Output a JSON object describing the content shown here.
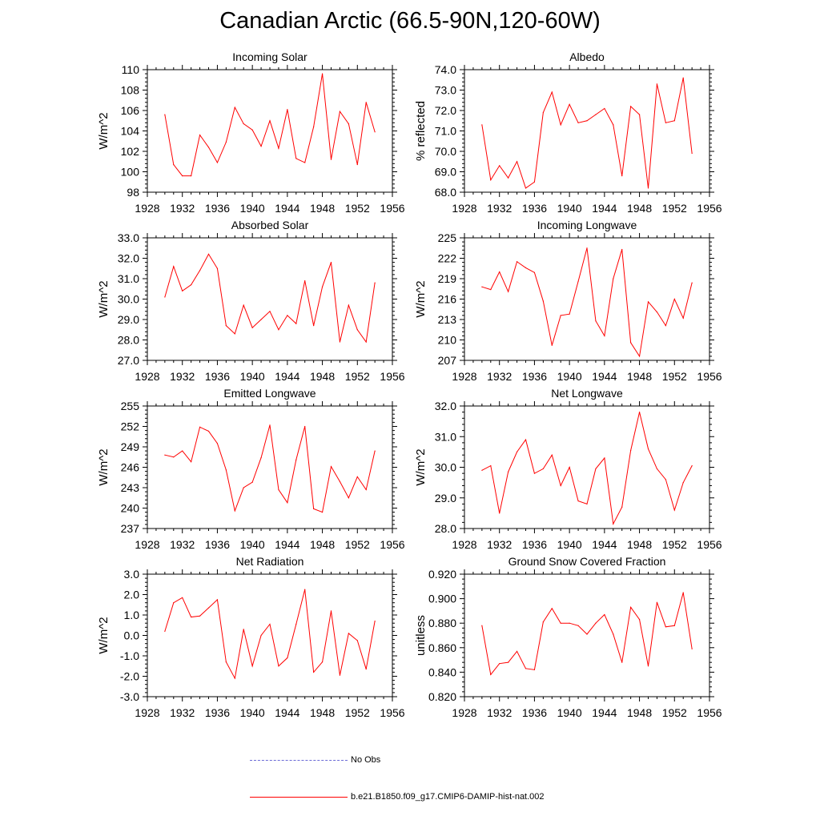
{
  "figure": {
    "title": "Canadian Arctic (66.5-90N,120-60W)"
  },
  "colors": {
    "model": "#ff0000",
    "obs": "#6b6bd6"
  },
  "legend": {
    "obs_label": "No Obs",
    "model_label": "b.e21.B1850.f09_g17.CMIP6-DAMIP-hist-nat.002"
  },
  "chart_data": [
    {
      "type": "line",
      "title": "Incoming Solar",
      "xlabel": "",
      "ylabel": "W/m^2",
      "xlim": [
        1928,
        1956
      ],
      "xticks": [
        1928,
        1932,
        1936,
        1940,
        1944,
        1948,
        1952,
        1956
      ],
      "ylim": [
        98,
        110
      ],
      "yticks": [
        "98",
        "100",
        "102",
        "104",
        "106",
        "108",
        "110"
      ],
      "grid": false,
      "series": [
        {
          "x": [
            1930,
            1931,
            1932,
            1933,
            1934,
            1935,
            1936,
            1937,
            1938,
            1939,
            1940,
            1941,
            1942,
            1943,
            1944,
            1945,
            1946,
            1947,
            1948,
            1949,
            1950,
            1951,
            1952,
            1953,
            1954
          ],
          "values": [
            105.6,
            100.7,
            99.6,
            99.6,
            103.6,
            102.4,
            100.9,
            102.9,
            106.3,
            104.7,
            104.1,
            102.5,
            105.0,
            102.3,
            106.1,
            101.3,
            100.9,
            104.4,
            109.6,
            101.2,
            105.9,
            104.7,
            100.7,
            106.8,
            103.9
          ]
        }
      ]
    },
    {
      "type": "line",
      "title": "Albedo",
      "xlabel": "",
      "ylabel": "% reflected",
      "xlim": [
        1928,
        1956
      ],
      "xticks": [
        1928,
        1932,
        1936,
        1940,
        1944,
        1948,
        1952,
        1956
      ],
      "ylim": [
        68,
        74
      ],
      "yticks": [
        "68.0",
        "69.0",
        "70.0",
        "71.0",
        "72.0",
        "73.0",
        "74.0"
      ],
      "grid": false,
      "series": [
        {
          "x": [
            1930,
            1931,
            1932,
            1933,
            1934,
            1935,
            1936,
            1937,
            1938,
            1939,
            1940,
            1941,
            1942,
            1943,
            1944,
            1945,
            1946,
            1947,
            1948,
            1949,
            1950,
            1951,
            1952,
            1953,
            1954
          ],
          "values": [
            71.3,
            68.6,
            69.3,
            68.7,
            69.5,
            68.2,
            68.5,
            71.9,
            72.9,
            71.3,
            72.3,
            71.4,
            71.5,
            71.8,
            72.1,
            71.3,
            68.8,
            72.2,
            71.8,
            68.2,
            73.3,
            71.4,
            71.5,
            73.6,
            69.9
          ]
        }
      ]
    },
    {
      "type": "line",
      "title": "Absorbed Solar",
      "xlabel": "",
      "ylabel": "W/m^2",
      "xlim": [
        1928,
        1956
      ],
      "xticks": [
        1928,
        1932,
        1936,
        1940,
        1944,
        1948,
        1952,
        1956
      ],
      "ylim": [
        27,
        33
      ],
      "yticks": [
        "27.0",
        "28.0",
        "29.0",
        "30.0",
        "31.0",
        "32.0",
        "33.0"
      ],
      "grid": false,
      "series": [
        {
          "x": [
            1930,
            1931,
            1932,
            1933,
            1934,
            1935,
            1936,
            1937,
            1938,
            1939,
            1940,
            1941,
            1942,
            1943,
            1944,
            1945,
            1946,
            1947,
            1948,
            1949,
            1950,
            1951,
            1952,
            1953,
            1954
          ],
          "values": [
            30.1,
            31.6,
            30.4,
            30.7,
            31.4,
            32.2,
            31.5,
            28.7,
            28.3,
            29.7,
            28.6,
            29.0,
            29.4,
            28.5,
            29.2,
            28.8,
            30.9,
            28.7,
            30.6,
            31.8,
            27.9,
            29.7,
            28.5,
            27.9,
            30.8
          ]
        }
      ]
    },
    {
      "type": "line",
      "title": "Incoming Longwave",
      "xlabel": "",
      "ylabel": "W/m^2",
      "xlim": [
        1928,
        1956
      ],
      "xticks": [
        1928,
        1932,
        1936,
        1940,
        1944,
        1948,
        1952,
        1956
      ],
      "ylim": [
        207,
        225
      ],
      "yticks": [
        "207",
        "210",
        "213",
        "216",
        "219",
        "222",
        "225"
      ],
      "grid": false,
      "series": [
        {
          "x": [
            1930,
            1931,
            1932,
            1933,
            1934,
            1935,
            1936,
            1937,
            1938,
            1939,
            1940,
            1941,
            1942,
            1943,
            1944,
            1945,
            1946,
            1947,
            1948,
            1949,
            1950,
            1951,
            1952,
            1953,
            1954
          ],
          "values": [
            217.8,
            217.4,
            220.0,
            217.1,
            221.5,
            220.6,
            219.9,
            215.7,
            209.2,
            213.6,
            213.8,
            218.6,
            223.5,
            212.8,
            210.6,
            219.0,
            223.3,
            209.6,
            207.6,
            215.6,
            214.1,
            212.1,
            216.0,
            213.2,
            218.4
          ]
        }
      ]
    },
    {
      "type": "line",
      "title": "Emitted Longwave",
      "xlabel": "",
      "ylabel": "W/m^2",
      "xlim": [
        1928,
        1956
      ],
      "xticks": [
        1928,
        1932,
        1936,
        1940,
        1944,
        1948,
        1952,
        1956
      ],
      "ylim": [
        237,
        255
      ],
      "yticks": [
        "237",
        "240",
        "243",
        "246",
        "249",
        "252",
        "255"
      ],
      "grid": false,
      "series": [
        {
          "x": [
            1930,
            1931,
            1932,
            1933,
            1934,
            1935,
            1936,
            1937,
            1938,
            1939,
            1940,
            1941,
            1942,
            1943,
            1944,
            1945,
            1946,
            1947,
            1948,
            1949,
            1950,
            1951,
            1952,
            1953,
            1954
          ],
          "values": [
            247.8,
            247.5,
            248.4,
            246.8,
            251.9,
            251.3,
            249.5,
            245.6,
            239.6,
            243.0,
            243.8,
            247.4,
            252.2,
            242.7,
            240.8,
            247.1,
            252.0,
            239.9,
            239.4,
            246.1,
            243.9,
            241.5,
            244.6,
            242.7,
            248.4
          ]
        }
      ]
    },
    {
      "type": "line",
      "title": "Net Longwave",
      "xlabel": "",
      "ylabel": "W/m^2",
      "xlim": [
        1928,
        1956
      ],
      "xticks": [
        1928,
        1932,
        1936,
        1940,
        1944,
        1948,
        1952,
        1956
      ],
      "ylim": [
        28,
        32
      ],
      "yticks": [
        "28.0",
        "29.0",
        "30.0",
        "31.0",
        "32.0"
      ],
      "grid": false,
      "series": [
        {
          "x": [
            1930,
            1931,
            1932,
            1933,
            1934,
            1935,
            1936,
            1937,
            1938,
            1939,
            1940,
            1941,
            1942,
            1943,
            1944,
            1945,
            1946,
            1947,
            1948,
            1949,
            1950,
            1951,
            1952,
            1953,
            1954
          ],
          "values": [
            29.9,
            30.05,
            28.5,
            29.85,
            30.5,
            30.9,
            29.8,
            29.95,
            30.4,
            29.4,
            30.0,
            28.9,
            28.8,
            29.95,
            30.3,
            28.15,
            28.7,
            30.55,
            31.8,
            30.6,
            29.95,
            29.6,
            28.6,
            29.5,
            30.05
          ]
        }
      ]
    },
    {
      "type": "line",
      "title": "Net Radiation",
      "xlabel": "",
      "ylabel": "W/m^2",
      "xlim": [
        1928,
        1956
      ],
      "xticks": [
        1928,
        1932,
        1936,
        1940,
        1944,
        1948,
        1952,
        1956
      ],
      "ylim": [
        -3,
        3
      ],
      "yticks": [
        "-3.0",
        "-2.0",
        "-1.0",
        "0.0",
        "1.0",
        "2.0",
        "3.0"
      ],
      "grid": false,
      "series": [
        {
          "x": [
            1930,
            1931,
            1932,
            1933,
            1934,
            1935,
            1936,
            1937,
            1938,
            1939,
            1940,
            1941,
            1942,
            1943,
            1944,
            1945,
            1946,
            1947,
            1948,
            1949,
            1950,
            1951,
            1952,
            1953,
            1954
          ],
          "values": [
            0.2,
            1.6,
            1.85,
            0.9,
            0.95,
            1.35,
            1.75,
            -1.3,
            -2.1,
            0.3,
            -1.5,
            0.0,
            0.55,
            -1.5,
            -1.1,
            0.55,
            2.25,
            -1.8,
            -1.3,
            1.2,
            -1.95,
            0.1,
            -0.25,
            -1.65,
            0.7
          ]
        }
      ]
    },
    {
      "type": "line",
      "title": "Ground Snow Covered Fraction",
      "xlabel": "",
      "ylabel": "unitless",
      "xlim": [
        1928,
        1956
      ],
      "xticks": [
        1928,
        1932,
        1936,
        1940,
        1944,
        1948,
        1952,
        1956
      ],
      "ylim": [
        0.82,
        0.92
      ],
      "yticks": [
        "0.820",
        "0.840",
        "0.860",
        "0.880",
        "0.900",
        "0.920"
      ],
      "grid": false,
      "series": [
        {
          "x": [
            1930,
            1931,
            1932,
            1933,
            1934,
            1935,
            1936,
            1937,
            1938,
            1939,
            1940,
            1941,
            1942,
            1943,
            1944,
            1945,
            1946,
            1947,
            1948,
            1949,
            1950,
            1951,
            1952,
            1953,
            1954
          ],
          "values": [
            0.878,
            0.838,
            0.847,
            0.848,
            0.857,
            0.843,
            0.842,
            0.881,
            0.892,
            0.88,
            0.88,
            0.878,
            0.871,
            0.88,
            0.887,
            0.871,
            0.848,
            0.893,
            0.883,
            0.845,
            0.897,
            0.877,
            0.878,
            0.905,
            0.859
          ]
        }
      ]
    }
  ]
}
